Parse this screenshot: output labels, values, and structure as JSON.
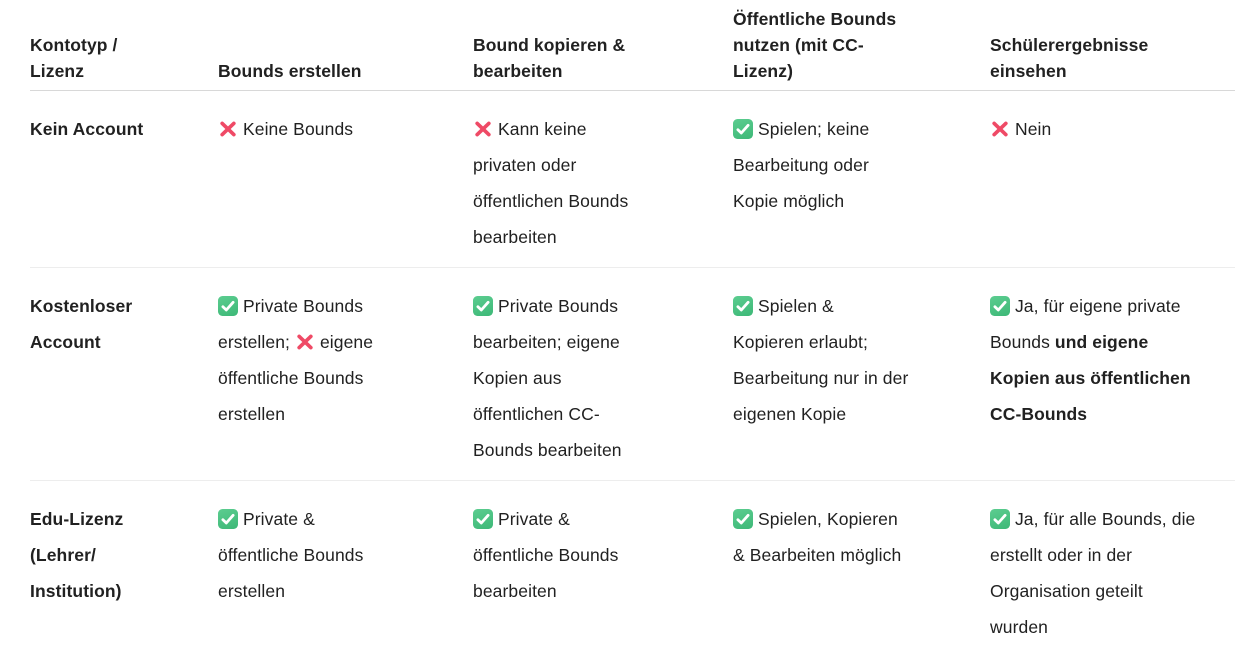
{
  "icons": {
    "check": {
      "name": "check-icon",
      "bg_top": "#5ccd90",
      "bg_bottom": "#3db877",
      "glyph_color": "#ffffff"
    },
    "cross": {
      "name": "cross-icon",
      "color": "#ef4a66"
    }
  },
  "colors": {
    "header_divider": "#d8d8d8",
    "row_divider": "#ededed",
    "text": "#212121"
  },
  "table": {
    "headers": [
      "Kontotyp /\nLizenz",
      "Bounds erstellen",
      "Bound kopieren &\nbearbeiten",
      "Öffentliche Bounds\nnutzen (mit CC-\nLizenz)",
      "Schülerergebnisse\neinsehen"
    ],
    "rows": [
      {
        "label": "Kein Account",
        "cells": [
          [
            {
              "icon": "cross"
            },
            {
              "text": " Keine Bounds"
            }
          ],
          [
            {
              "icon": "cross"
            },
            {
              "text": " Kann keine\nprivaten oder\nöffentlichen Bounds\nbearbeiten"
            }
          ],
          [
            {
              "icon": "check"
            },
            {
              "text": " Spielen; keine\nBearbeitung oder\nKopie möglich"
            }
          ],
          [
            {
              "icon": "cross"
            },
            {
              "text": " Nein"
            }
          ]
        ]
      },
      {
        "label": "Kostenloser\nAccount",
        "cells": [
          [
            {
              "icon": "check"
            },
            {
              "text": " Private Bounds\nerstellen; "
            },
            {
              "icon": "cross"
            },
            {
              "text": " eigene\nöffentliche Bounds\nerstellen"
            }
          ],
          [
            {
              "icon": "check"
            },
            {
              "text": " Private Bounds\nbearbeiten; eigene\nKopien aus\nöffentlichen CC-\nBounds bearbeiten"
            }
          ],
          [
            {
              "icon": "check"
            },
            {
              "text": " Spielen &\nKopieren erlaubt;\nBearbeitung nur in der\neigenen Kopie"
            }
          ],
          [
            {
              "icon": "check"
            },
            {
              "text": " Ja, für eigene private\nBounds "
            },
            {
              "bold": "und eigene\nKopien aus öffentlichen\nCC-Bounds"
            }
          ]
        ]
      },
      {
        "label": "Edu-Lizenz\n(Lehrer/\nInstitution)",
        "cells": [
          [
            {
              "icon": "check"
            },
            {
              "text": " Private &\nöffentliche Bounds\nerstellen"
            }
          ],
          [
            {
              "icon": "check"
            },
            {
              "text": " Private &\nöffentliche Bounds\nbearbeiten"
            }
          ],
          [
            {
              "icon": "check"
            },
            {
              "text": " Spielen, Kopieren\n& Bearbeiten möglich"
            }
          ],
          [
            {
              "icon": "check"
            },
            {
              "text": " Ja, für alle Bounds, die\nerstellt oder in der\nOrganisation geteilt\nwurden"
            }
          ]
        ]
      }
    ]
  }
}
